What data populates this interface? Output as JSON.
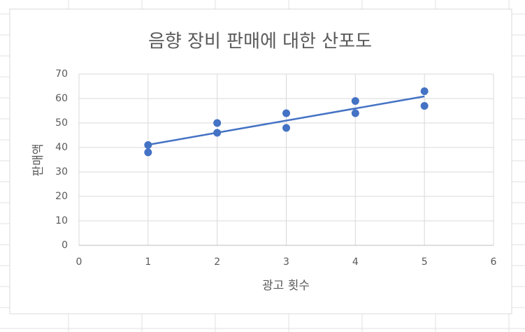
{
  "chart_data": {
    "type": "scatter",
    "title": "음향 장비 판매에 대한 산포도",
    "x_label": "광고 횟수",
    "y_label": "판매액",
    "series": [
      {
        "color": "#4472c4",
        "x": [
          1,
          1,
          2,
          2,
          3,
          3,
          4,
          4,
          5,
          5
        ],
        "values": [
          41,
          38,
          50,
          46,
          54,
          48,
          59,
          54,
          63,
          57
        ]
      }
    ],
    "trendline": {
      "color": "#4472c4",
      "x": [
        1,
        5
      ],
      "values": [
        41.1,
        60.9
      ]
    },
    "xlim": [
      0,
      6
    ],
    "xticks": [
      0,
      1,
      2,
      3,
      4,
      5,
      6
    ],
    "ylim": [
      0,
      70
    ],
    "yticks": [
      0,
      10,
      20,
      30,
      40,
      50,
      60,
      70
    ],
    "grid": true
  }
}
